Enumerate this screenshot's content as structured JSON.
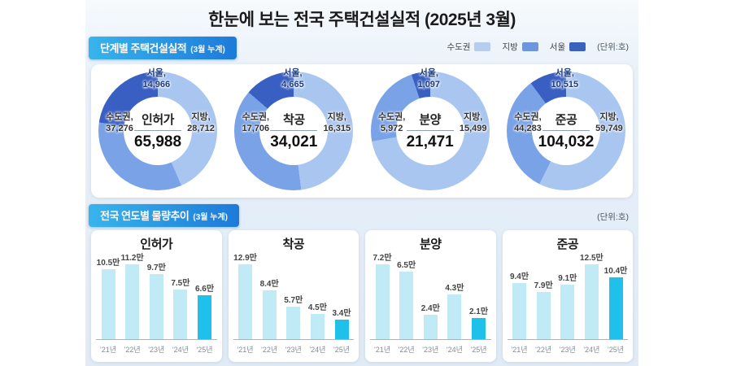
{
  "page": {
    "title": "한눈에 보는 전국 주택건설실적 (2025년 3월)"
  },
  "section1": {
    "badge_label": "단계별 주택건설실적",
    "badge_sub": "(3월 누계)",
    "unit_label": "(단위:호)",
    "legend": [
      {
        "label": "수도권",
        "color": "#b6cdee"
      },
      {
        "label": "지방",
        "color": "#6e96dc"
      },
      {
        "label": "서울",
        "color": "#3a62bc"
      }
    ]
  },
  "section2": {
    "badge_label": "전국 연도별 물량추이",
    "badge_sub": "(3월 누계)",
    "unit_label": "(단위:호)"
  },
  "colors": {
    "badge_gradient_from": "#38b4ec",
    "badge_gradient_to": "#1d7ad9",
    "donut_jibang_slice": "#a9c6f0",
    "donut_sudogwon_slice": "#7aa2e6",
    "donut_seoul_slice": "#3a5fc2",
    "bar": "#bfeaf6",
    "bar_highlight": "#1fc0ea"
  },
  "chart_data": [
    {
      "type": "donut",
      "name": "인허가",
      "total_value": 65988,
      "total_label": "65,988",
      "sudogwon": {
        "name": "수도권,",
        "value": 37276,
        "label": "37,276"
      },
      "jibang": {
        "name": "지방,",
        "value": 28712,
        "label": "28,712"
      },
      "seoul": {
        "name": "서울,",
        "value": 14966,
        "label": "14,966"
      }
    },
    {
      "type": "donut",
      "name": "착공",
      "total_value": 34021,
      "total_label": "34,021",
      "sudogwon": {
        "name": "수도권,",
        "value": 17706,
        "label": "17,706"
      },
      "jibang": {
        "name": "지방,",
        "value": 16315,
        "label": "16,315"
      },
      "seoul": {
        "name": "서울,",
        "value": 4665,
        "label": "4,665"
      }
    },
    {
      "type": "donut",
      "name": "분양",
      "total_value": 21471,
      "total_label": "21,471",
      "sudogwon": {
        "name": "수도권,",
        "value": 5972,
        "label": "5,972"
      },
      "jibang": {
        "name": "지방,",
        "value": 15499,
        "label": "15,499"
      },
      "seoul": {
        "name": "서울,",
        "value": 1097,
        "label": "1,097"
      }
    },
    {
      "type": "donut",
      "name": "준공",
      "total_value": 104032,
      "total_label": "104,032",
      "sudogwon": {
        "name": "수도권,",
        "value": 44283,
        "label": "44,283"
      },
      "jibang": {
        "name": "지방,",
        "value": 59749,
        "label": "59,749"
      },
      "seoul": {
        "name": "서울,",
        "value": 10515,
        "label": "10,515"
      }
    },
    {
      "type": "bar",
      "title": "인허가",
      "categories": [
        "'21년",
        "'22년",
        "'23년",
        "'24년",
        "'25년"
      ],
      "values": [
        10.5,
        11.2,
        9.7,
        7.5,
        6.6
      ],
      "labels": [
        "10.5만",
        "11.2만",
        "9.7만",
        "7.5만",
        "6.6만"
      ],
      "unit": "만",
      "highlight_index": 4
    },
    {
      "type": "bar",
      "title": "착공",
      "categories": [
        "'21년",
        "'22년",
        "'23년",
        "'24년",
        "'25년"
      ],
      "values": [
        12.9,
        8.4,
        5.7,
        4.5,
        3.4
      ],
      "labels": [
        "12.9만",
        "8.4만",
        "5.7만",
        "4.5만",
        "3.4만"
      ],
      "unit": "만",
      "highlight_index": 4
    },
    {
      "type": "bar",
      "title": "분양",
      "categories": [
        "'21년",
        "'22년",
        "'23년",
        "'24년",
        "'25년"
      ],
      "values": [
        7.2,
        6.5,
        2.4,
        4.3,
        2.1
      ],
      "labels": [
        "7.2만",
        "6.5만",
        "2.4만",
        "4.3만",
        "2.1만"
      ],
      "unit": "만",
      "highlight_index": 4
    },
    {
      "type": "bar",
      "title": "준공",
      "categories": [
        "'21년",
        "'22년",
        "'23년",
        "'24년",
        "'25년"
      ],
      "values": [
        9.4,
        7.9,
        9.1,
        12.5,
        10.4
      ],
      "labels": [
        "9.4만",
        "7.9만",
        "9.1만",
        "12.5만",
        "10.4만"
      ],
      "unit": "만",
      "highlight_index": 4
    }
  ]
}
